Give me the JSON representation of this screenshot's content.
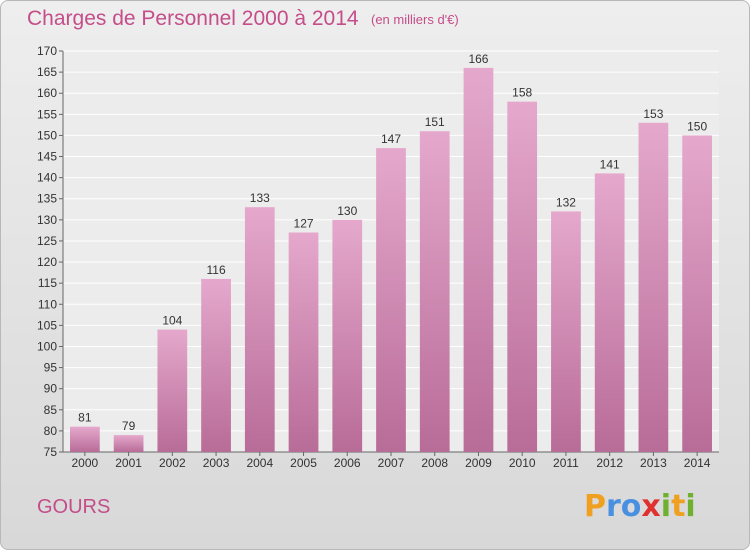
{
  "header": {
    "title": "Charges de Personnel 2000 à 2014",
    "subtitle": "(en milliers d'€)"
  },
  "footer": {
    "commune": "GOURS",
    "logo": {
      "letters": [
        "P",
        "r",
        "o",
        "x",
        "i",
        "t",
        "i"
      ],
      "colors": [
        "#f0a020",
        "#4a90e0",
        "#4a90e0",
        "#e03030",
        "#70b030",
        "#f0a020",
        "#70b030"
      ]
    }
  },
  "colors": {
    "bar_top": "#e5a8cc",
    "bar_bottom": "#b86c98",
    "accent": "#c44d8a"
  },
  "chart_data": {
    "type": "bar",
    "title": "Charges de Personnel 2000 à 2014",
    "subtitle": "(en milliers d'€)",
    "xlabel": "",
    "ylabel": "",
    "ylim": [
      75,
      170
    ],
    "yticks": [
      75,
      80,
      85,
      90,
      95,
      100,
      105,
      110,
      115,
      120,
      125,
      130,
      135,
      140,
      145,
      150,
      155,
      160,
      165,
      170
    ],
    "grid": true,
    "categories": [
      "2000",
      "2001",
      "2002",
      "2003",
      "2004",
      "2005",
      "2006",
      "2007",
      "2008",
      "2009",
      "2010",
      "2011",
      "2012",
      "2013",
      "2014"
    ],
    "values": [
      81,
      79,
      104,
      116,
      133,
      127,
      130,
      147,
      151,
      166,
      158,
      132,
      141,
      153,
      150
    ]
  }
}
